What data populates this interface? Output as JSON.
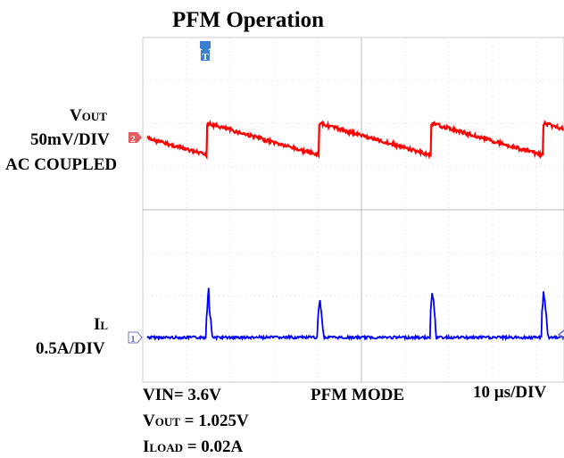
{
  "title": "PFM Operation",
  "channel2": {
    "marker": "2",
    "name": {
      "main": "V",
      "sub": "OUT"
    },
    "scale": "50mV/DIV",
    "coupling": "AC COUPLED"
  },
  "channel1": {
    "marker": "1",
    "name": {
      "main": "I",
      "sub": "L"
    },
    "scale": "0.5A/DIV"
  },
  "trigger": "T",
  "footer": {
    "vin": "VIN= 3.6V",
    "mode": "PFM MODE",
    "timebase": "10 µs/DIV",
    "vout": {
      "main": "V",
      "sub": "OUT",
      "rest": " = 1.025V"
    },
    "iload": {
      "main": "I",
      "sub": "LOAD",
      "rest": " = 0.02A"
    }
  }
}
